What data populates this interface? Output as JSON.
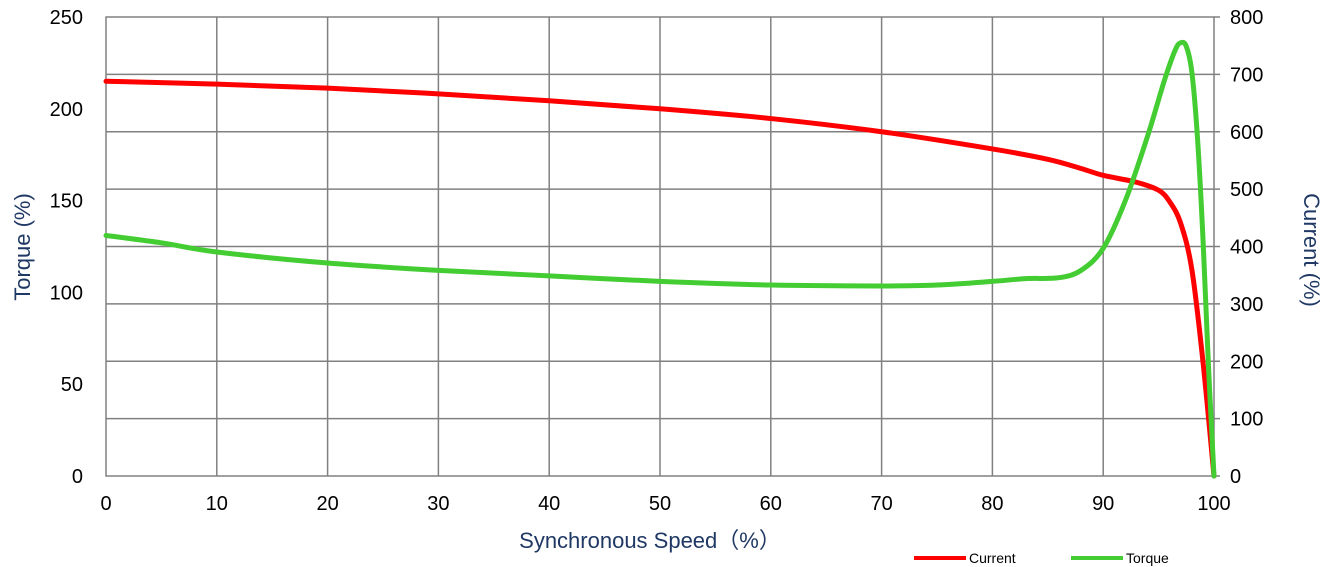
{
  "chart_data": {
    "type": "line",
    "xlabel": "Synchronous Speed（%）",
    "ylabel_left": "Torque (%)",
    "ylabel_right": "Current (%)",
    "xlim": [
      0,
      100
    ],
    "ylim_left": [
      0,
      250
    ],
    "ylim_right": [
      0,
      800
    ],
    "x_ticks": [
      "0",
      "10",
      "20",
      "30",
      "40",
      "50",
      "60",
      "70",
      "80",
      "90",
      "100"
    ],
    "y_left_ticks": [
      "0",
      "50",
      "100",
      "150",
      "200",
      "250"
    ],
    "y_right_ticks": [
      "0",
      "100",
      "200",
      "300",
      "400",
      "500",
      "600",
      "700",
      "800"
    ],
    "grid": true,
    "legend_position": "bottom-right",
    "series": [
      {
        "name": "Current",
        "axis": "right",
        "color": "#ff0000",
        "points": [
          [
            0,
            688
          ],
          [
            10,
            683
          ],
          [
            20,
            676
          ],
          [
            30,
            666
          ],
          [
            40,
            654
          ],
          [
            50,
            640
          ],
          [
            60,
            623
          ],
          [
            70,
            600
          ],
          [
            80,
            570
          ],
          [
            85,
            552
          ],
          [
            88,
            536
          ],
          [
            90,
            524
          ],
          [
            93,
            512
          ],
          [
            95,
            498
          ],
          [
            96,
            478
          ],
          [
            97,
            440
          ],
          [
            98,
            360
          ],
          [
            99,
            200
          ],
          [
            100,
            0
          ]
        ]
      },
      {
        "name": "Torque",
        "axis": "left",
        "color": "#44cc33",
        "points": [
          [
            0,
            131
          ],
          [
            5,
            127
          ],
          [
            10,
            122
          ],
          [
            20,
            116
          ],
          [
            30,
            112
          ],
          [
            40,
            109
          ],
          [
            50,
            106
          ],
          [
            60,
            104
          ],
          [
            70,
            103.5
          ],
          [
            75,
            104
          ],
          [
            80,
            106
          ],
          [
            83,
            107.5
          ],
          [
            86,
            108
          ],
          [
            88,
            112
          ],
          [
            90,
            124
          ],
          [
            92,
            150
          ],
          [
            94,
            185
          ],
          [
            95.5,
            215
          ],
          [
            96.5,
            232
          ],
          [
            97,
            236
          ],
          [
            97.5,
            234
          ],
          [
            98,
            220
          ],
          [
            98.5,
            185
          ],
          [
            99,
            130
          ],
          [
            99.5,
            60
          ],
          [
            100,
            0
          ]
        ]
      }
    ]
  }
}
